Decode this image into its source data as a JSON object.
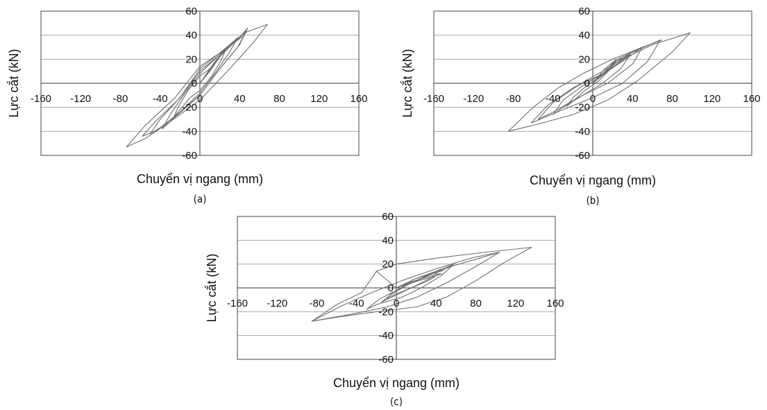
{
  "chart_data": [
    {
      "id": "a",
      "type": "line",
      "caption": "(a)",
      "xlabel": "Chuyển vị ngang (mm)",
      "ylabel": "Lực cắt (kN)",
      "xlim": [
        -160,
        160
      ],
      "ylim": [
        -60,
        60
      ],
      "xticks": [
        -160,
        -120,
        -80,
        -40,
        0,
        40,
        80,
        120,
        160
      ],
      "yticks": [
        -60,
        -40,
        -20,
        0,
        20,
        40,
        60
      ],
      "grid": "horizontal",
      "series": [
        {
          "values": [
            [
              0,
              0
            ],
            [
              10,
              10
            ],
            [
              20,
              22
            ],
            [
              26,
              28
            ],
            [
              22,
              20
            ],
            [
              12,
              6
            ],
            [
              0,
              -6
            ],
            [
              -10,
              -12
            ],
            [
              -20,
              -22
            ],
            [
              -26,
              -28
            ],
            [
              -22,
              -20
            ],
            [
              -12,
              -6
            ],
            [
              0,
              6
            ],
            [
              10,
              12
            ],
            [
              20,
              22
            ],
            [
              26,
              28
            ]
          ]
        },
        {
          "values": [
            [
              0,
              0
            ],
            [
              15,
              18
            ],
            [
              30,
              32
            ],
            [
              38,
              38
            ],
            [
              30,
              26
            ],
            [
              15,
              8
            ],
            [
              0,
              -8
            ],
            [
              -15,
              -20
            ],
            [
              -30,
              -32
            ],
            [
              -38,
              -38
            ],
            [
              -30,
              -26
            ],
            [
              -15,
              -8
            ],
            [
              0,
              8
            ],
            [
              15,
              20
            ],
            [
              30,
              32
            ],
            [
              38,
              38
            ]
          ]
        },
        {
          "values": [
            [
              0,
              0
            ],
            [
              20,
              22
            ],
            [
              38,
              37
            ],
            [
              46,
              42
            ],
            [
              38,
              30
            ],
            [
              18,
              10
            ],
            [
              0,
              -10
            ],
            [
              -20,
              -24
            ],
            [
              -40,
              -37
            ],
            [
              -50,
              -42
            ],
            [
              -40,
              -30
            ],
            [
              -18,
              -10
            ],
            [
              0,
              10
            ],
            [
              20,
              24
            ],
            [
              40,
              38
            ],
            [
              47,
              44
            ]
          ]
        },
        {
          "values": [
            [
              0,
              0
            ],
            [
              22,
              24
            ],
            [
              40,
              38
            ],
            [
              48,
              46
            ],
            [
              40,
              32
            ],
            [
              20,
              12
            ],
            [
              0,
              -10
            ],
            [
              -22,
              -26
            ],
            [
              -45,
              -40
            ],
            [
              -58,
              -44
            ],
            [
              -45,
              -32
            ],
            [
              -20,
              -12
            ],
            [
              0,
              12
            ],
            [
              24,
              28
            ],
            [
              45,
              42
            ],
            [
              48,
              46
            ]
          ]
        },
        {
          "values": [
            [
              0,
              0
            ],
            [
              25,
              28
            ],
            [
              45,
              42
            ],
            [
              68,
              49
            ],
            [
              55,
              35
            ],
            [
              30,
              12
            ],
            [
              0,
              -14
            ],
            [
              -30,
              -32
            ],
            [
              -55,
              -46
            ],
            [
              -74,
              -53
            ],
            [
              -55,
              -35
            ],
            [
              -25,
              -12
            ],
            [
              0,
              14
            ],
            [
              25,
              28
            ],
            [
              45,
              40
            ]
          ]
        }
      ]
    },
    {
      "id": "b",
      "type": "line",
      "caption": "(b)",
      "xlabel": "Chuyển vị ngang (mm)",
      "ylabel": "Lực cắt (kN)",
      "xlim": [
        -160,
        160
      ],
      "ylim": [
        -60,
        60
      ],
      "xticks": [
        -160,
        -120,
        -80,
        -40,
        0,
        40,
        80,
        120,
        160
      ],
      "yticks": [
        -60,
        -40,
        -20,
        0,
        20,
        40,
        60
      ],
      "grid": "horizontal",
      "series": [
        {
          "values": [
            [
              0,
              0
            ],
            [
              12,
              12
            ],
            [
              24,
              20
            ],
            [
              18,
              12
            ],
            [
              6,
              2
            ],
            [
              -8,
              -6
            ],
            [
              -20,
              -15
            ],
            [
              -26,
              -19
            ],
            [
              -20,
              -12
            ],
            [
              -6,
              -2
            ],
            [
              8,
              6
            ],
            [
              24,
              20
            ]
          ]
        },
        {
          "values": [
            [
              0,
              0
            ],
            [
              20,
              16
            ],
            [
              38,
              24
            ],
            [
              28,
              12
            ],
            [
              10,
              0
            ],
            [
              -10,
              -10
            ],
            [
              -30,
              -20
            ],
            [
              -40,
              -26
            ],
            [
              -30,
              -14
            ],
            [
              -10,
              -2
            ],
            [
              10,
              8
            ],
            [
              28,
              18
            ],
            [
              38,
              24
            ]
          ]
        },
        {
          "values": [
            [
              0,
              0
            ],
            [
              25,
              20
            ],
            [
              50,
              30
            ],
            [
              40,
              16
            ],
            [
              15,
              0
            ],
            [
              -15,
              -12
            ],
            [
              -40,
              -24
            ],
            [
              -55,
              -30
            ],
            [
              -40,
              -16
            ],
            [
              -15,
              -2
            ],
            [
              15,
              10
            ],
            [
              40,
              24
            ],
            [
              50,
              30
            ]
          ]
        },
        {
          "values": [
            [
              0,
              0
            ],
            [
              30,
              22
            ],
            [
              68,
              36
            ],
            [
              55,
              18
            ],
            [
              30,
              0
            ],
            [
              0,
              -12
            ],
            [
              -30,
              -22
            ],
            [
              -62,
              -33
            ],
            [
              -45,
              -18
            ],
            [
              -20,
              -4
            ],
            [
              10,
              10
            ],
            [
              40,
              26
            ],
            [
              68,
              36
            ]
          ]
        },
        {
          "values": [
            [
              0,
              0
            ],
            [
              30,
              20
            ],
            [
              60,
              32
            ],
            [
              98,
              42
            ],
            [
              80,
              26
            ],
            [
              45,
              2
            ],
            [
              15,
              -14
            ],
            [
              -20,
              -26
            ],
            [
              -55,
              -34
            ],
            [
              -85,
              -40
            ],
            [
              -60,
              -20
            ],
            [
              -35,
              -4
            ],
            [
              -10,
              8
            ],
            [
              20,
              20
            ],
            [
              50,
              30
            ],
            [
              70,
              36
            ]
          ]
        }
      ]
    },
    {
      "id": "c",
      "type": "line",
      "caption": "(c)",
      "xlabel": "Chuyển vị ngang (mm)",
      "ylabel": "Lực cắt (kN)",
      "xlim": [
        -160,
        160
      ],
      "ylim": [
        -60,
        60
      ],
      "xticks": [
        -160,
        -120,
        -80,
        -40,
        0,
        40,
        80,
        120,
        160
      ],
      "yticks": [
        -60,
        -40,
        -20,
        0,
        20,
        40,
        60
      ],
      "grid": "horizontal",
      "series": [
        {
          "values": [
            [
              0,
              0
            ],
            [
              15,
              5
            ],
            [
              30,
              9
            ],
            [
              44,
              12
            ],
            [
              32,
              6
            ],
            [
              15,
              0
            ],
            [
              0,
              -5
            ],
            [
              -10,
              -9
            ],
            [
              -4,
              -4
            ],
            [
              8,
              2
            ],
            [
              22,
              6
            ],
            [
              40,
              10
            ],
            [
              46,
              12
            ]
          ]
        },
        {
          "values": [
            [
              0,
              0
            ],
            [
              20,
              8
            ],
            [
              40,
              14
            ],
            [
              46,
              16
            ],
            [
              34,
              8
            ],
            [
              15,
              0
            ],
            [
              0,
              -6
            ],
            [
              -15,
              -12
            ],
            [
              -6,
              -6
            ],
            [
              10,
              2
            ],
            [
              28,
              9
            ],
            [
              46,
              16
            ]
          ]
        },
        {
          "values": [
            [
              0,
              0
            ],
            [
              20,
              8
            ],
            [
              45,
              14
            ],
            [
              58,
              20
            ],
            [
              45,
              10
            ],
            [
              25,
              0
            ],
            [
              5,
              -8
            ],
            [
              -20,
              -14
            ],
            [
              -30,
              -18
            ],
            [
              -18,
              -10
            ],
            [
              0,
              -2
            ],
            [
              20,
              6
            ],
            [
              40,
              14
            ],
            [
              58,
              20
            ]
          ]
        },
        {
          "values": [
            [
              0,
              0
            ],
            [
              25,
              8
            ],
            [
              55,
              18
            ],
            [
              80,
              24
            ],
            [
              104,
              30
            ],
            [
              80,
              18
            ],
            [
              50,
              4
            ],
            [
              20,
              -8
            ],
            [
              -10,
              -16
            ],
            [
              -45,
              -22
            ],
            [
              -85,
              -28
            ],
            [
              -55,
              -15
            ],
            [
              -25,
              -4
            ],
            [
              5,
              6
            ],
            [
              40,
              16
            ],
            [
              75,
              25
            ],
            [
              104,
              30
            ]
          ]
        },
        {
          "values": [
            [
              0,
              0
            ],
            [
              -20,
              14
            ],
            [
              0,
              20
            ],
            [
              40,
              25
            ],
            [
              90,
              30
            ],
            [
              136,
              34
            ],
            [
              110,
              22
            ],
            [
              80,
              6
            ],
            [
              50,
              -8
            ],
            [
              20,
              -16
            ],
            [
              -20,
              -20
            ],
            [
              -55,
              -24
            ],
            [
              -85,
              -28
            ],
            [
              -60,
              -14
            ],
            [
              -35,
              -4
            ],
            [
              -20,
              14
            ]
          ]
        }
      ]
    }
  ]
}
